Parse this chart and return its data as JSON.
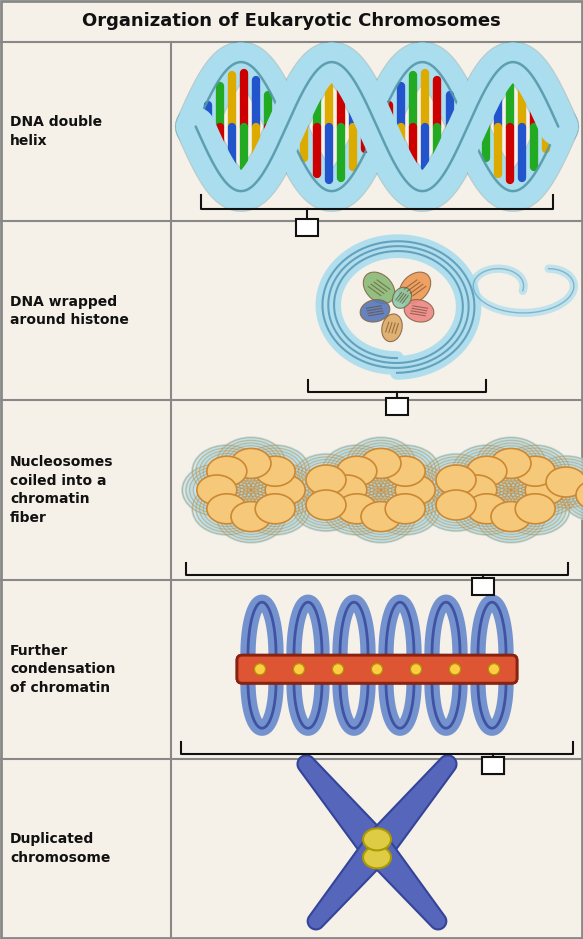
{
  "title": "Organization of Eukaryotic Chromosomes",
  "background_color": "#f5f0e8",
  "border_color": "#888888",
  "text_color": "#000000",
  "labels": [
    "DNA double\nhelix",
    "DNA wrapped\naround histone",
    "Nucleosomes\ncoiled into a\nchromatin\nfiber",
    "Further\ncondensation\nof chromatin",
    "Duplicated\nchromosome"
  ],
  "connector_color": "#222222",
  "dna_backbone_color": "#aaddee",
  "dna_outline_color": "#5599aa",
  "dna_base_colors": [
    "#cc0000",
    "#2255cc",
    "#22aa22",
    "#ddaa00"
  ],
  "nucleosome_fill": "#f5c87a",
  "nucleosome_edge": "#cc8833",
  "dna_wrap_color": "#aaddee",
  "chromatin_loop_fill": "#6688cc",
  "chromatin_loop_edge": "#334499",
  "scaffold_fill": "#dd5533",
  "scaffold_edge": "#882211",
  "scaffold_dot_fill": "#ffcc44",
  "chromosome_fill": "#5566bb",
  "chromosome_edge": "#334499",
  "centromere_fill": "#ddcc44",
  "centromere_edge": "#aa9900"
}
